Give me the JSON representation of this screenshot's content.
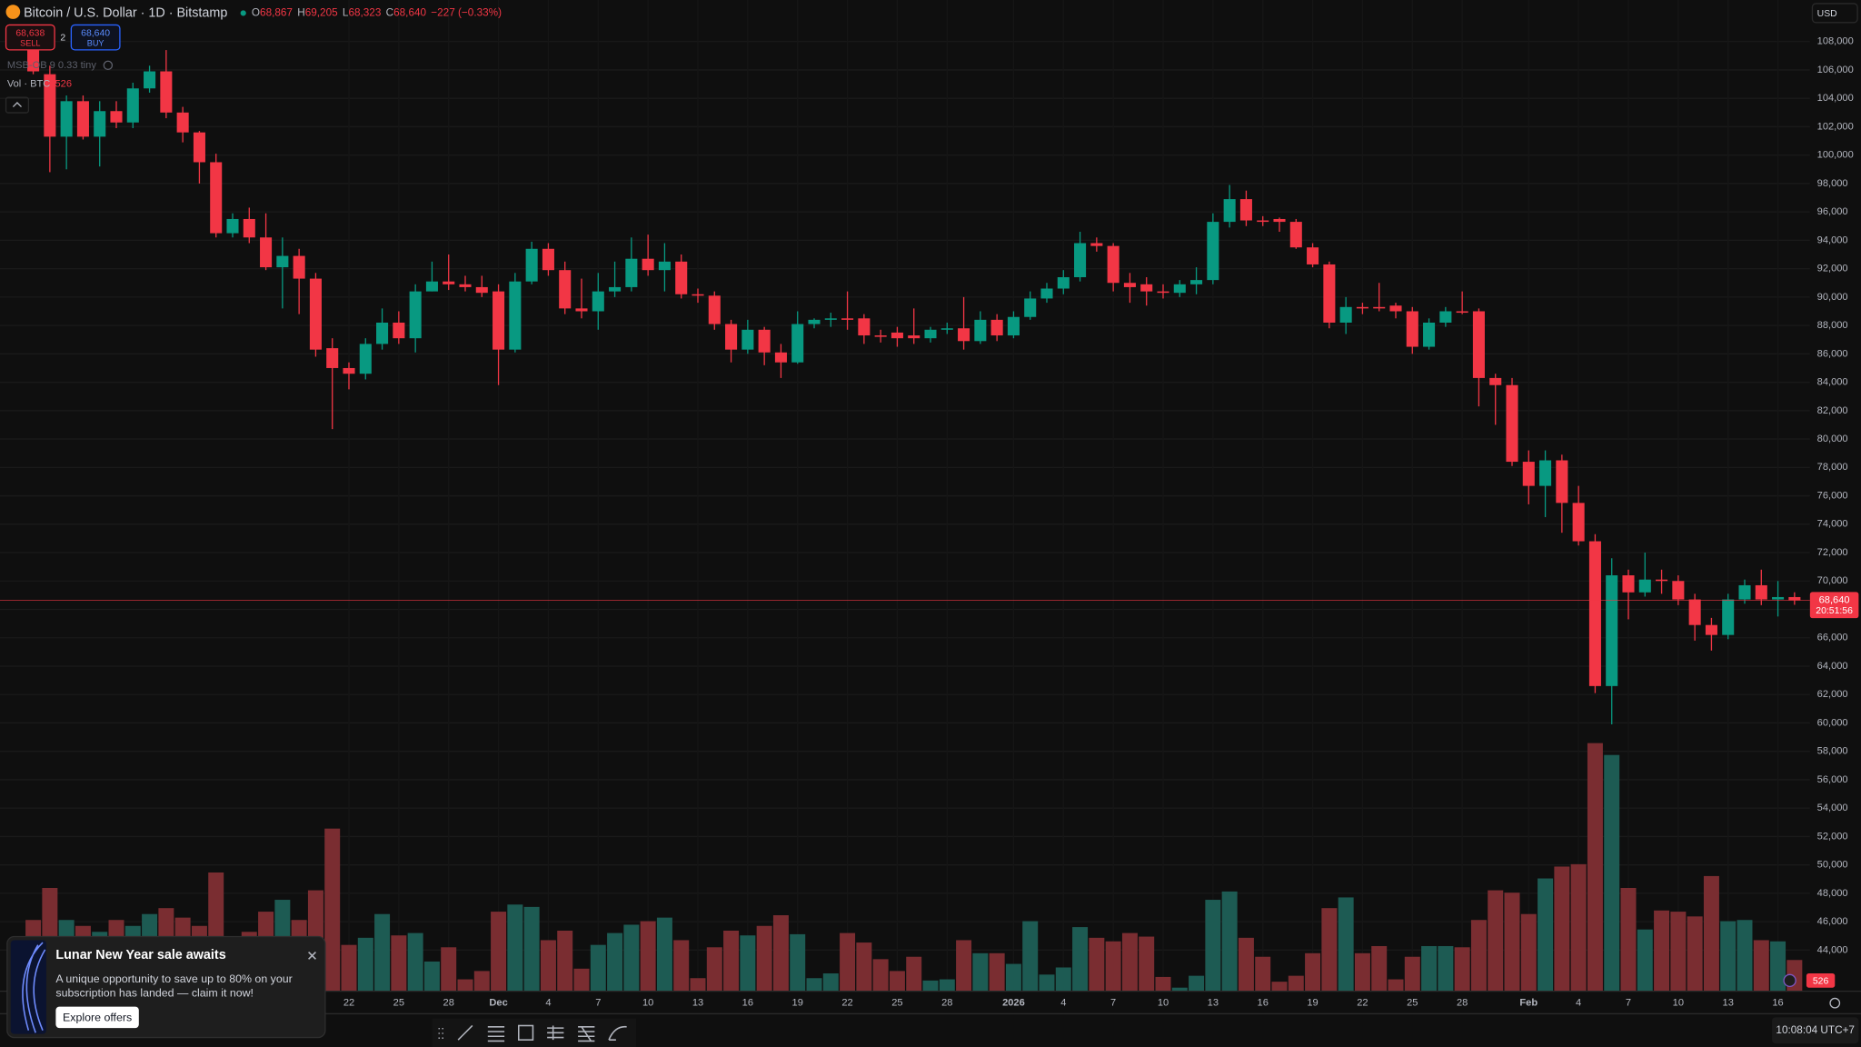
{
  "header": {
    "symbol": "Bitcoin / U.S. Dollar · 1D · Bitstamp",
    "o_label": "O",
    "o": "68,867",
    "h_label": "H",
    "h": "69,205",
    "l_label": "L",
    "l": "68,323",
    "c_label": "C",
    "c": "68,640",
    "change": "−227 (−0.33%)"
  },
  "trade": {
    "sell_price": "68,638",
    "sell": "SELL",
    "spread": "2",
    "buy_price": "68,640",
    "buy": "BUY"
  },
  "indicator": "MSB-OB 9 0.33 tiny",
  "volume_legend": "Vol · BTC",
  "currency": "USD",
  "clock": "10:08:04 UTC+7",
  "popup": {
    "title": "Lunar New Year sale awaits",
    "body": [
      "A unique opportunity to save up to 80% on your",
      "subscription has landed — claim it now!"
    ],
    "button": "Explore offers"
  },
  "chart_data": {
    "type": "candlestick",
    "categories": [
      null,
      null,
      null,
      null,
      null,
      null,
      null,
      null,
      null,
      null,
      null,
      null,
      null,
      null,
      null,
      null,
      null,
      null,
      null,
      "22",
      null,
      null,
      "25",
      null,
      null,
      "28",
      null,
      null,
      "Dec",
      null,
      null,
      "4",
      null,
      null,
      "7",
      null,
      null,
      "10",
      null,
      null,
      "13",
      null,
      null,
      "16",
      null,
      null,
      "19",
      null,
      null,
      "22",
      null,
      null,
      "25",
      null,
      null,
      "28",
      null,
      null,
      null,
      "2026",
      null,
      null,
      "4",
      null,
      null,
      "7",
      null,
      null,
      "10",
      null,
      null,
      "13",
      null,
      null,
      "16",
      null,
      null,
      "19",
      null,
      null,
      "22",
      null,
      null,
      "25",
      null,
      null,
      "28",
      null,
      null,
      null,
      "Feb",
      null,
      null,
      "4",
      null,
      null,
      "7",
      null,
      null,
      "10",
      null,
      null,
      "13",
      null,
      null,
      "16",
      null
    ],
    "open": [
      107600,
      105700,
      101300,
      103800,
      101300,
      103100,
      102300,
      104700,
      105900,
      103000,
      101600,
      99500,
      94500,
      95500,
      94200,
      92100,
      92900,
      91300,
      86400,
      85000,
      84600,
      86700,
      88200,
      87100,
      90400,
      91100,
      90900,
      90700,
      90400,
      86300,
      91100,
      93400,
      91900,
      89200,
      89000,
      90400,
      90700,
      92700,
      91900,
      92500,
      90200,
      90100,
      88100,
      86300,
      87700,
      86100,
      85400,
      88100,
      88400,
      88500,
      88500,
      87300,
      87500,
      87300,
      87100,
      87700,
      87800,
      86900,
      88400,
      87300,
      88600,
      89900,
      90600,
      91400,
      93800,
      93600,
      91000,
      90900,
      90400,
      90300,
      90900,
      91200,
      95300,
      96900,
      95400,
      95500,
      95300,
      93500,
      92300,
      88200,
      89300,
      89300,
      89400,
      89000,
      86500,
      88200,
      89000,
      89000,
      84300,
      83800,
      78400,
      76700,
      78500,
      75500,
      72800,
      62600,
      70400,
      69200,
      70100,
      70000,
      68700,
      66900,
      66200,
      68700,
      69700,
      68700,
      68867
    ],
    "high": [
      108000,
      106300,
      104200,
      104200,
      103800,
      103800,
      105100,
      106300,
      107400,
      103400,
      101700,
      100100,
      95900,
      96300,
      95900,
      94200,
      93400,
      91700,
      87100,
      85400,
      87100,
      89200,
      89000,
      90900,
      92500,
      93000,
      91500,
      91500,
      90900,
      91700,
      93900,
      93800,
      92500,
      91300,
      91700,
      92500,
      94200,
      94400,
      93800,
      93000,
      90600,
      90400,
      88400,
      88400,
      87900,
      86700,
      89000,
      88500,
      88900,
      90400,
      88800,
      87700,
      87900,
      89200,
      87900,
      88200,
      90000,
      89000,
      88800,
      89000,
      90400,
      91000,
      91900,
      94600,
      94200,
      93800,
      91700,
      91400,
      90900,
      91200,
      92100,
      95900,
      97900,
      97500,
      95700,
      95600,
      95500,
      93800,
      92500,
      90000,
      89600,
      91000,
      89600,
      89300,
      88500,
      89300,
      90400,
      89200,
      84600,
      84300,
      79200,
      79200,
      78900,
      76700,
      73300,
      71600,
      70800,
      72000,
      70800,
      70400,
      69100,
      67400,
      69100,
      70100,
      70800,
      70000,
      69205
    ],
    "low": [
      105700,
      98800,
      99000,
      101100,
      99200,
      101900,
      101900,
      104400,
      102600,
      100900,
      98000,
      94200,
      94200,
      93800,
      91900,
      89200,
      88800,
      85800,
      80700,
      83500,
      84200,
      86300,
      86700,
      86100,
      90400,
      90500,
      90400,
      90000,
      83800,
      86100,
      90900,
      91500,
      88800,
      88500,
      87700,
      90000,
      90400,
      91500,
      90400,
      89900,
      89600,
      87700,
      85400,
      86000,
      85200,
      84300,
      85300,
      87800,
      87900,
      87700,
      86700,
      86800,
      86500,
      86700,
      86800,
      87400,
      86300,
      86700,
      86900,
      87100,
      88400,
      89600,
      90200,
      91100,
      93200,
      90400,
      89600,
      89400,
      89900,
      90000,
      90200,
      90900,
      94900,
      95000,
      95000,
      94600,
      93400,
      92100,
      87800,
      87400,
      88800,
      89000,
      88500,
      86000,
      86300,
      87900,
      88800,
      82300,
      81000,
      78100,
      75400,
      74500,
      73400,
      72500,
      62100,
      59900,
      67300,
      68900,
      69100,
      68300,
      65800,
      65100,
      65900,
      68400,
      68300,
      67500,
      68323
    ],
    "close": [
      105900,
      101300,
      103800,
      101300,
      103100,
      102300,
      104700,
      105900,
      103000,
      101600,
      99500,
      94500,
      95500,
      94200,
      92100,
      92900,
      91300,
      86300,
      85000,
      84600,
      86700,
      88200,
      87100,
      90400,
      91100,
      90900,
      90700,
      90300,
      86300,
      91100,
      93400,
      91900,
      89200,
      89000,
      90400,
      90700,
      92700,
      91900,
      92500,
      90200,
      90100,
      88100,
      86300,
      87700,
      86100,
      85400,
      88100,
      88400,
      88500,
      88400,
      87300,
      87200,
      87100,
      87100,
      87700,
      87800,
      86900,
      88400,
      87300,
      88600,
      89900,
      90600,
      91400,
      93800,
      93600,
      91000,
      90700,
      90400,
      90300,
      90900,
      91200,
      95300,
      96900,
      95400,
      95300,
      95300,
      93500,
      92300,
      88200,
      89300,
      89200,
      89200,
      89000,
      86500,
      88200,
      89000,
      88900,
      84300,
      83800,
      78400,
      76700,
      78500,
      75500,
      72800,
      62600,
      70400,
      69200,
      70100,
      70000,
      68700,
      66900,
      66200,
      68700,
      69700,
      68700,
      68867,
      68640
    ],
    "volume": [
      1200,
      1740,
      1200,
      1100,
      1000,
      1200,
      1100,
      1300,
      1400,
      1240,
      1100,
      2000,
      900,
      1000,
      1340,
      1540,
      1200,
      1700,
      2740,
      780,
      900,
      1300,
      940,
      980,
      500,
      740,
      200,
      340,
      1340,
      1460,
      1420,
      860,
      1020,
      380,
      780,
      980,
      1120,
      1180,
      1240,
      860,
      220,
      740,
      1020,
      940,
      1100,
      1280,
      960,
      220,
      300,
      980,
      820,
      540,
      340,
      580,
      180,
      200,
      860,
      640,
      640,
      460,
      1180,
      280,
      400,
      1080,
      900,
      840,
      980,
      920,
      240,
      60,
      260,
      1540,
      1680,
      900,
      580,
      160,
      260,
      640,
      1400,
      1580,
      640,
      760,
      200,
      580,
      760,
      760,
      740,
      1200,
      1700,
      1660,
      1300,
      1900,
      2100,
      2140,
      4180,
      3980,
      1740,
      1040,
      1360,
      1340,
      1260,
      1940,
      1180,
      1200,
      860,
      840,
      526
    ],
    "last_price_label": "68,640",
    "countdown": "20:51:56",
    "ylim": [
      41104,
      110927
    ],
    "yticks": [
      {
        "value": 44000,
        "label": "44,000"
      },
      {
        "value": 46000,
        "label": "46,000"
      },
      {
        "value": 48000,
        "label": "48,000"
      },
      {
        "value": 50000,
        "label": "50,000"
      },
      {
        "value": 52000,
        "label": "52,000"
      },
      {
        "value": 54000,
        "label": "54,000"
      },
      {
        "value": 56000,
        "label": "56,000"
      },
      {
        "value": 58000,
        "label": "58,000"
      },
      {
        "value": 60000,
        "label": "60,000"
      },
      {
        "value": 62000,
        "label": "62,000"
      },
      {
        "value": 64000,
        "label": "64,000"
      },
      {
        "value": 66000,
        "label": "66,000"
      },
      {
        "value": 68000,
        "label": "68,000"
      },
      {
        "value": 70000,
        "label": "70,000"
      },
      {
        "value": 72000,
        "label": "72,000"
      },
      {
        "value": 74000,
        "label": "74,000"
      },
      {
        "value": 76000,
        "label": "76,000"
      },
      {
        "value": 78000,
        "label": "78,000"
      },
      {
        "value": 80000,
        "label": "80,000"
      },
      {
        "value": 82000,
        "label": "82,000"
      },
      {
        "value": 84000,
        "label": "84,000"
      },
      {
        "value": 86000,
        "label": "86,000"
      },
      {
        "value": 88000,
        "label": "88,000"
      },
      {
        "value": 90000,
        "label": "90,000"
      },
      {
        "value": 92000,
        "label": "92,000"
      },
      {
        "value": 94000,
        "label": "94,000"
      },
      {
        "value": 96000,
        "label": "96,000"
      },
      {
        "value": 98000,
        "label": "98,000"
      },
      {
        "value": 100000,
        "label": "100,000"
      },
      {
        "value": 102000,
        "label": "102,000"
      },
      {
        "value": 104000,
        "label": "104,000"
      },
      {
        "value": 106000,
        "label": "106,000"
      },
      {
        "value": 108000,
        "label": "108,000"
      }
    ],
    "vol_ylim": [
      0,
      16700
    ],
    "grid": true,
    "up_color": "#089981",
    "down_color": "#f23645",
    "up_volume_color": "#1d5b53",
    "down_volume_color": "#7a2d31"
  }
}
